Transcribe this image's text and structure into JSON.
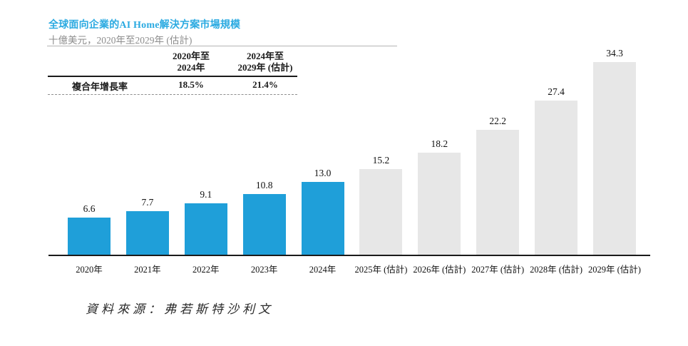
{
  "header": {
    "title": "全球面向企業的AI Home解決方案市場規模",
    "subtitle": "十億美元，2020年至2029年 (估計)"
  },
  "cagr_table": {
    "row_label": "複合年增長率",
    "columns": [
      {
        "header_line1": "2020年至",
        "header_line2": "2024年",
        "value": "18.5%"
      },
      {
        "header_line1": "2024年至",
        "header_line2": "2029年 (估計)",
        "value": "21.4%"
      }
    ]
  },
  "chart_data": {
    "type": "bar",
    "title": "全球面向企業的AI Home解決方案市場規模",
    "ylabel": "十億美元",
    "categories": [
      "2020年",
      "2021年",
      "2022年",
      "2023年",
      "2024年",
      "2025年 (估計)",
      "2026年 (估計)",
      "2027年 (估計)",
      "2028年 (估計)",
      "2029年 (估計)"
    ],
    "values": [
      6.6,
      7.7,
      9.1,
      10.8,
      13.0,
      15.2,
      18.2,
      22.2,
      27.4,
      34.3
    ],
    "value_labels": [
      "6.6",
      "7.7",
      "9.1",
      "10.8",
      "13.0",
      "15.2",
      "18.2",
      "22.2",
      "27.4",
      "34.3"
    ],
    "actual_count": 5,
    "bar_color_actual": "#1f9fd9",
    "bar_color_estimate": "#e7e7e7",
    "ylim": [
      0,
      36
    ],
    "grid": false,
    "legend_position": "none",
    "cagr_annotations": [
      {
        "period": "2020年至2024年",
        "value": "18.5%"
      },
      {
        "period": "2024年至2029年 (估計)",
        "value": "21.4%"
      }
    ]
  },
  "footer": {
    "source": "資料來源：弗若斯特沙利文"
  },
  "colors": {
    "title_blue": "#2baae1",
    "bar_blue": "#1f9fd9",
    "bar_gray": "#e7e7e7",
    "subtitle_gray": "#8c8c8c",
    "axis_black": "#1a1a1a"
  }
}
